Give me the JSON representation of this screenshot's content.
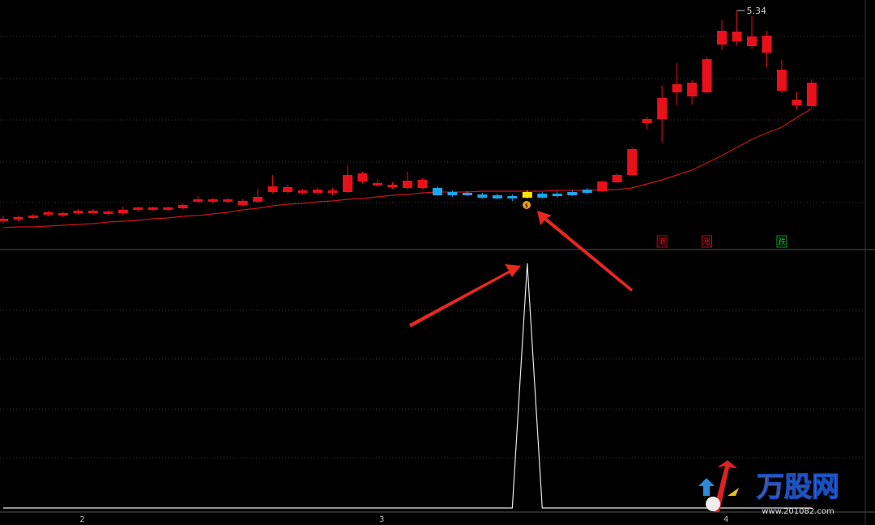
{
  "chart_data": {
    "type": "candlestick",
    "categories": [
      null,
      null,
      null,
      null,
      null,
      "2",
      null,
      null,
      null,
      null,
      null,
      null,
      null,
      null,
      null,
      null,
      null,
      null,
      null,
      null,
      null,
      null,
      null,
      null,
      null,
      "3",
      null,
      null,
      null,
      null,
      null,
      null,
      null,
      null,
      null,
      null,
      null,
      null,
      null,
      null,
      null,
      null,
      null,
      null,
      null,
      null,
      null,
      null,
      "4",
      null,
      null,
      null,
      null,
      null,
      null
    ],
    "open": [
      2.74,
      2.76,
      2.78,
      2.82,
      2.81,
      2.84,
      2.84,
      2.83,
      2.84,
      2.88,
      2.88,
      2.88,
      2.9,
      2.98,
      2.98,
      2.98,
      2.94,
      2.98,
      3.1,
      3.1,
      3.09,
      3.09,
      3.09,
      3.1,
      3.23,
      3.18,
      3.16,
      3.15,
      3.15,
      3.06,
      3.06,
      3.06,
      3.03,
      3.02,
      3.02,
      3.03,
      3.03,
      3.05,
      3.06,
      3.09,
      3.11,
      3.22,
      3.31,
      3.95,
      4.0,
      4.33,
      4.28,
      4.33,
      4.92,
      4.96,
      4.9,
      4.82,
      4.35,
      4.17,
      4.16
    ],
    "high": [
      2.81,
      2.81,
      2.83,
      2.87,
      2.86,
      2.89,
      2.89,
      2.88,
      2.92,
      2.92,
      2.92,
      2.92,
      2.96,
      3.05,
      3.03,
      3.03,
      3.01,
      3.14,
      3.31,
      3.19,
      3.14,
      3.15,
      3.15,
      3.42,
      3.35,
      3.25,
      3.22,
      3.35,
      3.27,
      3.17,
      3.12,
      3.11,
      3.09,
      3.08,
      3.07,
      3.12,
      3.1,
      3.11,
      3.12,
      3.15,
      3.24,
      3.33,
      3.65,
      4.03,
      4.41,
      4.69,
      4.48,
      4.77,
      5.22,
      5.34,
      5.27,
      5.09,
      4.73,
      4.34,
      4.49
    ],
    "low": [
      2.71,
      2.74,
      2.76,
      2.8,
      2.79,
      2.82,
      2.82,
      2.81,
      2.81,
      2.86,
      2.87,
      2.87,
      2.88,
      2.96,
      2.96,
      2.96,
      2.92,
      2.96,
      3.08,
      3.08,
      3.07,
      3.07,
      3.06,
      3.09,
      3.21,
      3.16,
      3.14,
      3.13,
      3.14,
      3.05,
      3.04,
      3.05,
      3.02,
      3.01,
      2.99,
      3.02,
      3.02,
      3.03,
      3.05,
      3.07,
      3.1,
      3.21,
      3.3,
      3.87,
      3.71,
      4.17,
      4.18,
      4.32,
      4.85,
      4.91,
      4.87,
      4.64,
      4.32,
      4.12,
      4.14
    ],
    "close": [
      2.77,
      2.79,
      2.81,
      2.85,
      2.84,
      2.87,
      2.87,
      2.86,
      2.88,
      2.91,
      2.91,
      2.91,
      2.94,
      3.01,
      3.01,
      3.01,
      2.99,
      3.04,
      3.17,
      3.16,
      3.12,
      3.13,
      3.12,
      3.31,
      3.33,
      3.21,
      3.19,
      3.24,
      3.25,
      3.15,
      3.1,
      3.09,
      3.07,
      3.06,
      3.05,
      3.1,
      3.08,
      3.08,
      3.1,
      3.13,
      3.23,
      3.31,
      3.63,
      4.0,
      4.26,
      4.43,
      4.45,
      4.74,
      5.09,
      5.08,
      5.02,
      5.03,
      4.61,
      4.24,
      4.45
    ],
    "colors": [
      "#e8101a",
      "#e8101a",
      "#e8101a",
      "#e8101a",
      "#e8101a",
      "#e8101a",
      "#e8101a",
      "#e8101a",
      "#e8101a",
      "#e8101a",
      "#e8101a",
      "#e8101a",
      "#e8101a",
      "#e8101a",
      "#e8101a",
      "#e8101a",
      "#e8101a",
      "#e8101a",
      "#e8101a",
      "#e8101a",
      "#e8101a",
      "#e8101a",
      "#e8101a",
      "#e8101a",
      "#e8101a",
      "#e8101a",
      "#e8101a",
      "#e8101a",
      "#e8101a",
      "#1ea5ea",
      "#1ea5ea",
      "#1ea5ea",
      "#1ea5ea",
      "#1ea5ea",
      "#1ea5ea",
      "#ffe400",
      "#1ea5ea",
      "#1ea5ea",
      "#1ea5ea",
      "#1ea5ea",
      "#e8101a",
      "#e8101a",
      "#e8101a",
      "#e8101a",
      "#e8101a",
      "#e8101a",
      "#e8101a",
      "#e8101a",
      "#e8101a",
      "#e8101a",
      "#e8101a",
      "#e8101a",
      "#e8101a",
      "#e8101a",
      "#e8101a"
    ],
    "ma": {
      "color": "#c8141c",
      "values": [
        2.66,
        2.67,
        2.67,
        2.68,
        2.69,
        2.7,
        2.71,
        2.73,
        2.74,
        2.75,
        2.77,
        2.78,
        2.8,
        2.81,
        2.83,
        2.85,
        2.88,
        2.9,
        2.93,
        2.95,
        2.96,
        2.98,
        2.99,
        3.01,
        3.02,
        3.04,
        3.06,
        3.07,
        3.09,
        3.1,
        3.1,
        3.1,
        3.11,
        3.11,
        3.11,
        3.11,
        3.11,
        3.12,
        3.12,
        3.12,
        3.13,
        3.13,
        3.15,
        3.2,
        3.25,
        3.31,
        3.37,
        3.46,
        3.55,
        3.65,
        3.75,
        3.83,
        3.9,
        4.02,
        4.13
      ]
    },
    "ylim": [
      2.4,
      5.47
    ],
    "signals": [
      {
        "index": 44,
        "label": "港",
        "color": "#e8101a"
      },
      {
        "index": 47,
        "label": "涨",
        "color": "#e8101a"
      },
      {
        "index": 52,
        "label": "跌",
        "color": "#19b83a"
      }
    ],
    "indicator": {
      "color": "#e6e6e6",
      "ylim": [
        0,
        1
      ],
      "values": [
        0,
        0,
        0,
        0,
        0,
        0,
        0,
        0,
        0,
        0,
        0,
        0,
        0,
        0,
        0,
        0,
        0,
        0,
        0,
        0,
        0,
        0,
        0,
        0,
        0,
        0,
        0,
        0,
        0,
        0,
        0,
        0,
        0,
        0,
        0,
        1,
        0,
        0,
        0,
        0,
        0,
        0,
        0,
        0,
        0,
        0,
        0,
        0,
        0,
        0,
        0,
        0,
        0,
        0,
        0
      ]
    }
  },
  "watermark": {
    "name": "万股网",
    "url": "www.201082.com"
  }
}
